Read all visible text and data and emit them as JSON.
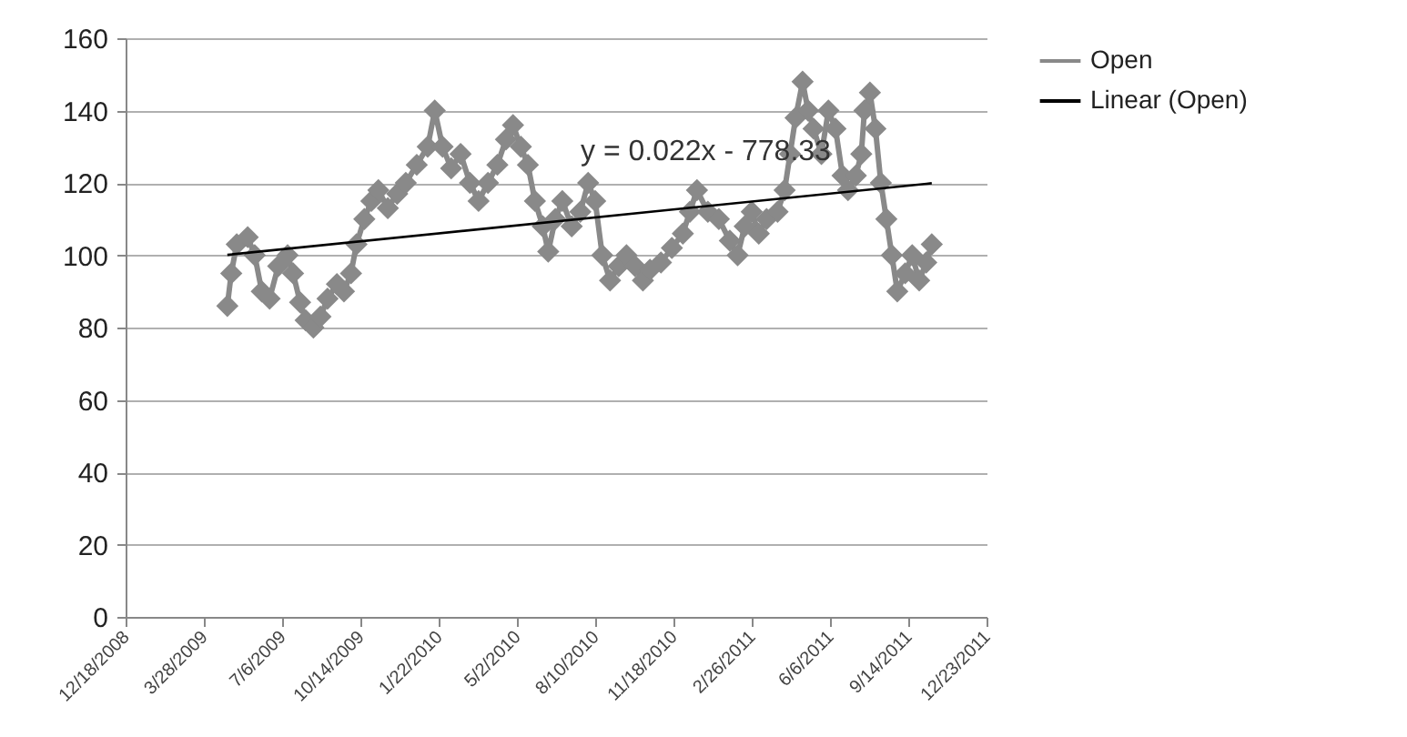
{
  "chart_data": {
    "type": "line",
    "xlim": [
      "2008-12-18",
      "2011-12-23"
    ],
    "xticks": [
      {
        "value": "2008-12-18",
        "label": "12/18/2008"
      },
      {
        "value": "2009-03-28",
        "label": "3/28/2009"
      },
      {
        "value": "2009-07-06",
        "label": "7/6/2009"
      },
      {
        "value": "2009-10-14",
        "label": "10/14/2009"
      },
      {
        "value": "2010-01-22",
        "label": "1/22/2010"
      },
      {
        "value": "2010-05-02",
        "label": "5/2/2010"
      },
      {
        "value": "2010-08-10",
        "label": "8/10/2010"
      },
      {
        "value": "2010-11-18",
        "label": "11/18/2010"
      },
      {
        "value": "2011-02-26",
        "label": "2/26/2011"
      },
      {
        "value": "2011-06-06",
        "label": "6/6/2011"
      },
      {
        "value": "2011-09-14",
        "label": "9/14/2011"
      },
      {
        "value": "2011-12-23",
        "label": "12/23/2011"
      }
    ],
    "ylim": [
      0,
      160
    ],
    "yticks": [
      0,
      20,
      40,
      60,
      80,
      100,
      120,
      140,
      160
    ],
    "grid": "y",
    "legend": "right",
    "annotations": [
      "y = 0.022x - 778.33"
    ],
    "series": [
      {
        "name": "Open",
        "color": "#898989",
        "marker": "diamond",
        "x": [
          "2009-04-27",
          "2009-05-02",
          "2009-05-09",
          "2009-05-23",
          "2009-06-01",
          "2009-06-10",
          "2009-06-20",
          "2009-07-01",
          "2009-07-13",
          "2009-07-20",
          "2009-07-29",
          "2009-08-05",
          "2009-08-15",
          "2009-08-24",
          "2009-09-02",
          "2009-09-14",
          "2009-09-23",
          "2009-10-02",
          "2009-10-09",
          "2009-10-19",
          "2009-10-28",
          "2009-11-06",
          "2009-11-18",
          "2009-11-30",
          "2009-12-11",
          "2009-12-25",
          "2010-01-08",
          "2010-01-17",
          "2010-01-27",
          "2010-02-07",
          "2010-02-19",
          "2010-03-03",
          "2010-03-14",
          "2010-03-26",
          "2010-04-07",
          "2010-04-18",
          "2010-04-27",
          "2010-05-07",
          "2010-05-16",
          "2010-05-25",
          "2010-06-04",
          "2010-06-11",
          "2010-06-20",
          "2010-06-29",
          "2010-07-11",
          "2010-07-22",
          "2010-08-01",
          "2010-08-10",
          "2010-08-19",
          "2010-08-29",
          "2010-09-09",
          "2010-09-19",
          "2010-09-30",
          "2010-10-10",
          "2010-10-19",
          "2010-11-02",
          "2010-11-16",
          "2010-11-30",
          "2010-12-09",
          "2010-12-18",
          "2011-01-01",
          "2011-01-15",
          "2011-01-29",
          "2011-02-08",
          "2011-02-17",
          "2011-02-26",
          "2011-03-07",
          "2011-03-17",
          "2011-03-31",
          "2011-04-09",
          "2011-04-16",
          "2011-04-23",
          "2011-05-02",
          "2011-05-09",
          "2011-05-16",
          "2011-05-26",
          "2011-06-04",
          "2011-06-13",
          "2011-06-22",
          "2011-06-29",
          "2011-07-09",
          "2011-07-16",
          "2011-07-20",
          "2011-07-27",
          "2011-08-03",
          "2011-08-10",
          "2011-08-17",
          "2011-08-24",
          "2011-08-31",
          "2011-09-10",
          "2011-09-19",
          "2011-09-28",
          "2011-10-07",
          "2011-10-14"
        ],
        "values": [
          86,
          95,
          103,
          105,
          100,
          90,
          88,
          97,
          100,
          95,
          87,
          82,
          80,
          83,
          88,
          92,
          90,
          95,
          103,
          110,
          115,
          118,
          113,
          117,
          120,
          125,
          130,
          140,
          130,
          124,
          128,
          120,
          115,
          120,
          125,
          132,
          136,
          130,
          125,
          115,
          108,
          101,
          110,
          115,
          108,
          112,
          120,
          115,
          100,
          93,
          97,
          100,
          97,
          93,
          96,
          98,
          102,
          106,
          112,
          118,
          112,
          110,
          104,
          100,
          108,
          112,
          106,
          110,
          112,
          118,
          128,
          138,
          148,
          140,
          135,
          128,
          140,
          135,
          122,
          118,
          122,
          128,
          140,
          145,
          135,
          120,
          110,
          100,
          90,
          95,
          100,
          93,
          98,
          103
        ]
      },
      {
        "name": "Linear (Open)",
        "color": "#000000",
        "marker": "none",
        "x": [
          "2009-04-27",
          "2011-10-14"
        ],
        "values": [
          100.1,
          119.9
        ]
      }
    ]
  }
}
